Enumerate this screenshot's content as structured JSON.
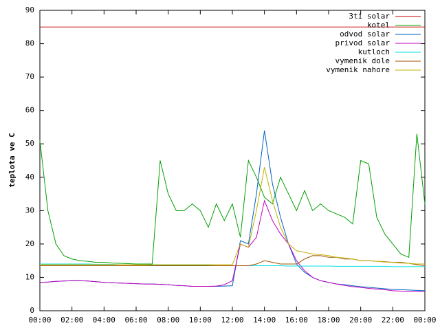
{
  "chart_data": {
    "type": "line",
    "ylabel": "teplota ve C",
    "xlim": [
      0,
      24
    ],
    "ylim": [
      0,
      90
    ],
    "yticks": [
      0,
      10,
      20,
      30,
      40,
      50,
      60,
      70,
      80,
      90
    ],
    "xticks": [
      {
        "value": 0,
        "label": "00:00"
      },
      {
        "value": 2,
        "label": "02:00"
      },
      {
        "value": 4,
        "label": "04:00"
      },
      {
        "value": 6,
        "label": "06:00"
      },
      {
        "value": 8,
        "label": "08:00"
      },
      {
        "value": 10,
        "label": "10:00"
      },
      {
        "value": 12,
        "label": "12:00"
      },
      {
        "value": 14,
        "label": "14:00"
      },
      {
        "value": 16,
        "label": "16:00"
      },
      {
        "value": 18,
        "label": "18:00"
      },
      {
        "value": 20,
        "label": "20:00"
      },
      {
        "value": 22,
        "label": "22:00"
      },
      {
        "value": 24,
        "label": "00:00"
      }
    ],
    "grid": false,
    "legend": "top-right",
    "x": [
      0,
      0.5,
      1,
      1.5,
      2,
      2.5,
      3,
      3.5,
      4,
      4.5,
      5,
      5.5,
      6,
      6.5,
      7,
      7.5,
      8,
      8.5,
      9,
      9.5,
      10,
      10.5,
      11,
      11.5,
      12,
      12.5,
      13,
      13.5,
      14,
      14.5,
      15,
      15.5,
      16,
      16.5,
      17,
      17.5,
      18,
      18.5,
      19,
      19.5,
      20,
      20.5,
      21,
      21.5,
      22,
      22.5,
      23,
      23.5,
      24
    ],
    "series": [
      {
        "name": "3ti solar",
        "color": "#c00000",
        "values": [
          85,
          85,
          85,
          85,
          85,
          85,
          85,
          85,
          85,
          85,
          85,
          85,
          85,
          85,
          85,
          85,
          85,
          85,
          85,
          85,
          85,
          85,
          85,
          85,
          85,
          85,
          85,
          85,
          85,
          85,
          85,
          85,
          85,
          85,
          85,
          85,
          85,
          85,
          85,
          85,
          85,
          85,
          85,
          85,
          85,
          85,
          85,
          85,
          85
        ]
      },
      {
        "name": "kotel",
        "color": "#00a000",
        "values": [
          51,
          30,
          20,
          16.5,
          15.5,
          15,
          14.8,
          14.5,
          14.5,
          14.3,
          14.2,
          14.1,
          14,
          14,
          14,
          45,
          35,
          30,
          30,
          32,
          30,
          25,
          32,
          27,
          32,
          22,
          45,
          40,
          34,
          32,
          40,
          35,
          30,
          36,
          30,
          32,
          30,
          29,
          28,
          26,
          45,
          44,
          28,
          23,
          20,
          17,
          16,
          53,
          32
        ]
      },
      {
        "name": "odvod solar",
        "color": "#0060c0",
        "values": [
          8.5,
          8.6,
          8.8,
          8.9,
          9,
          9,
          8.9,
          8.7,
          8.5,
          8.4,
          8.3,
          8.2,
          8.1,
          8,
          8,
          7.9,
          7.8,
          7.6,
          7.5,
          7.3,
          7.3,
          7.3,
          7.3,
          7.4,
          7.5,
          21,
          20,
          35,
          54,
          38,
          28,
          20,
          14,
          11.5,
          10,
          9,
          8.5,
          8,
          7.8,
          7.5,
          7.2,
          7,
          6.8,
          6.6,
          6.4,
          6.3,
          6.2,
          6.1,
          6
        ]
      },
      {
        "name": "privod solar",
        "color": "#c000c0",
        "values": [
          8.5,
          8.6,
          8.8,
          8.9,
          9,
          9,
          8.9,
          8.7,
          8.5,
          8.4,
          8.3,
          8.2,
          8.1,
          8,
          8,
          7.9,
          7.8,
          7.6,
          7.5,
          7.3,
          7.3,
          7.3,
          7.4,
          7.8,
          9,
          20,
          19,
          22,
          33,
          27,
          23,
          20,
          15,
          12,
          10,
          9,
          8.5,
          8,
          7.6,
          7.2,
          7,
          6.7,
          6.5,
          6.3,
          6,
          5.9,
          5.8,
          5.8,
          5.8
        ]
      },
      {
        "name": "kutloch",
        "color": "#00e0e0",
        "values": [
          14,
          14,
          14,
          14,
          14,
          14,
          14,
          13.9,
          13.9,
          13.9,
          13.8,
          13.8,
          13.8,
          13.8,
          13.7,
          13.7,
          13.7,
          13.7,
          13.6,
          13.6,
          13.6,
          13.6,
          13.5,
          13.5,
          13.5,
          13.5,
          13.5,
          13.5,
          13.5,
          13.5,
          13.5,
          13.4,
          13.4,
          13.4,
          13.4,
          13.4,
          13.4,
          13.3,
          13.3,
          13.3,
          13.3,
          13.3,
          13.3,
          13.3,
          13.2,
          13.2,
          13.2,
          13.2,
          13.2
        ]
      },
      {
        "name": "vymenik dole",
        "color": "#a05000",
        "values": [
          13.5,
          13.5,
          13.5,
          13.5,
          13.5,
          13.5,
          13.5,
          13.5,
          13.5,
          13.5,
          13.5,
          13.5,
          13.5,
          13.5,
          13.5,
          13.5,
          13.5,
          13.5,
          13.5,
          13.5,
          13.5,
          13.5,
          13.5,
          13.5,
          13.5,
          13.5,
          13.5,
          14,
          15,
          14.5,
          14,
          14,
          14,
          15.5,
          16.5,
          16.5,
          16,
          16,
          15.5,
          15.5,
          15,
          15,
          14.8,
          14.7,
          14.5,
          14.5,
          14.2,
          13.8,
          13.5
        ]
      },
      {
        "name": "vymenik nahore",
        "color": "#c0b000",
        "values": [
          13.8,
          13.8,
          13.8,
          13.8,
          13.8,
          13.8,
          13.8,
          13.8,
          13.8,
          13.8,
          13.8,
          13.8,
          13.8,
          13.8,
          13.8,
          13.8,
          13.8,
          13.8,
          13.8,
          13.8,
          13.8,
          13.8,
          13.8,
          13.8,
          13.8,
          20,
          19,
          30,
          43,
          33,
          25,
          20,
          18,
          17.5,
          17,
          16.8,
          16.5,
          16,
          15.8,
          15.5,
          15,
          15,
          14.8,
          14.6,
          14.5,
          14.3,
          14.2,
          14,
          14
        ]
      }
    ]
  }
}
